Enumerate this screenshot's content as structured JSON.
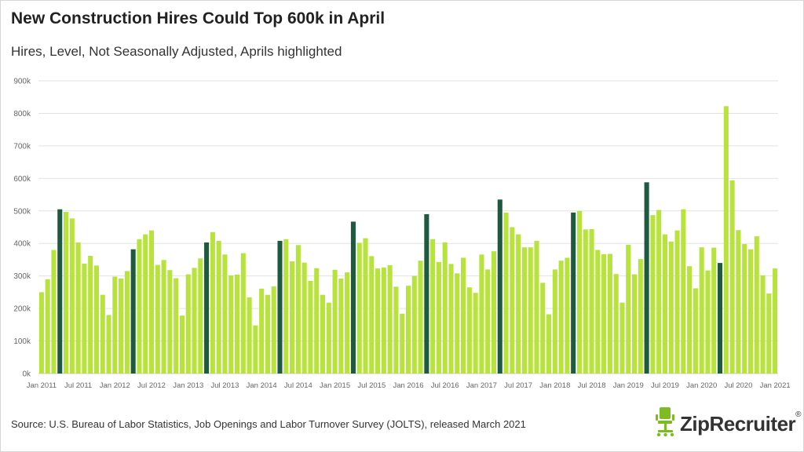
{
  "title": "New Construction Hires Could Top 600k in April",
  "subtitle": "Hires, Level, Not Seasonally Adjusted, Aprils highlighted",
  "source": "Source: U.S. Bureau of Labor Statistics, Job Openings and Labor Turnover Survey (JOLTS), released March 2021",
  "logo": {
    "text": "ZipRecruiter",
    "mark": "®",
    "icon": "office-chair-icon",
    "color": "#7dbb22"
  },
  "colors": {
    "bar": "#b7e33c",
    "april": "#1e5a3f",
    "grid": "#e2e2e2"
  },
  "chart_data": {
    "type": "bar",
    "title": "New Construction Hires Could Top 600k in April",
    "subtitle": "Hires, Level, Not Seasonally Adjusted, Aprils highlighted",
    "xlabel": "",
    "ylabel": "",
    "ylim": [
      0,
      900000
    ],
    "yticks": [
      0,
      100000,
      200000,
      300000,
      400000,
      500000,
      600000,
      700000,
      800000,
      900000
    ],
    "ytick_labels": [
      "0k",
      "100k",
      "200k",
      "300k",
      "400k",
      "500k",
      "600k",
      "700k",
      "800k",
      "900k"
    ],
    "xtick_labels": [
      "Jan 2011",
      "Jul 2011",
      "Jan 2012",
      "Jul 2012",
      "Jan 2013",
      "Jul 2013",
      "Jan 2014",
      "Jul 2014",
      "Jan 2015",
      "Jul 2015",
      "Jan 2016",
      "Jul 2016",
      "Jan 2017",
      "Jul 2017",
      "Jan 2018",
      "Jul 2018",
      "Jan 2019",
      "Jul 2019",
      "Jan 2020",
      "Jul 2020",
      "Jan 2021"
    ],
    "grid": true,
    "legend": "none",
    "start": "Jan 2011",
    "end": "Jan 2021",
    "highlight": "April",
    "values": [
      250000,
      290000,
      380000,
      505000,
      497000,
      477000,
      403000,
      338000,
      362000,
      332000,
      242000,
      180000,
      298000,
      292000,
      315000,
      382000,
      413000,
      428000,
      440000,
      334000,
      349000,
      318000,
      293000,
      178000,
      305000,
      325000,
      354000,
      403000,
      435000,
      408000,
      366000,
      302000,
      304000,
      370000,
      234000,
      148000,
      261000,
      242000,
      268000,
      408000,
      413000,
      345000,
      395000,
      341000,
      285000,
      324000,
      242000,
      218000,
      319000,
      292000,
      311000,
      467000,
      402000,
      416000,
      361000,
      323000,
      326000,
      333000,
      267000,
      184000,
      270000,
      300000,
      347000,
      490000,
      413000,
      343000,
      403000,
      337000,
      308000,
      356000,
      265000,
      248000,
      366000,
      320000,
      376000,
      535000,
      495000,
      450000,
      428000,
      388000,
      388000,
      408000,
      279000,
      182000,
      320000,
      347000,
      356000,
      495000,
      500000,
      443000,
      444000,
      380000,
      367000,
      368000,
      306000,
      218000,
      396000,
      305000,
      352000,
      588000,
      487000,
      503000,
      428000,
      406000,
      440000,
      505000,
      330000,
      262000,
      388000,
      317000,
      387000,
      340000,
      822000,
      594000,
      441000,
      398000,
      382000,
      422000,
      302000,
      246000,
      323000
    ]
  }
}
